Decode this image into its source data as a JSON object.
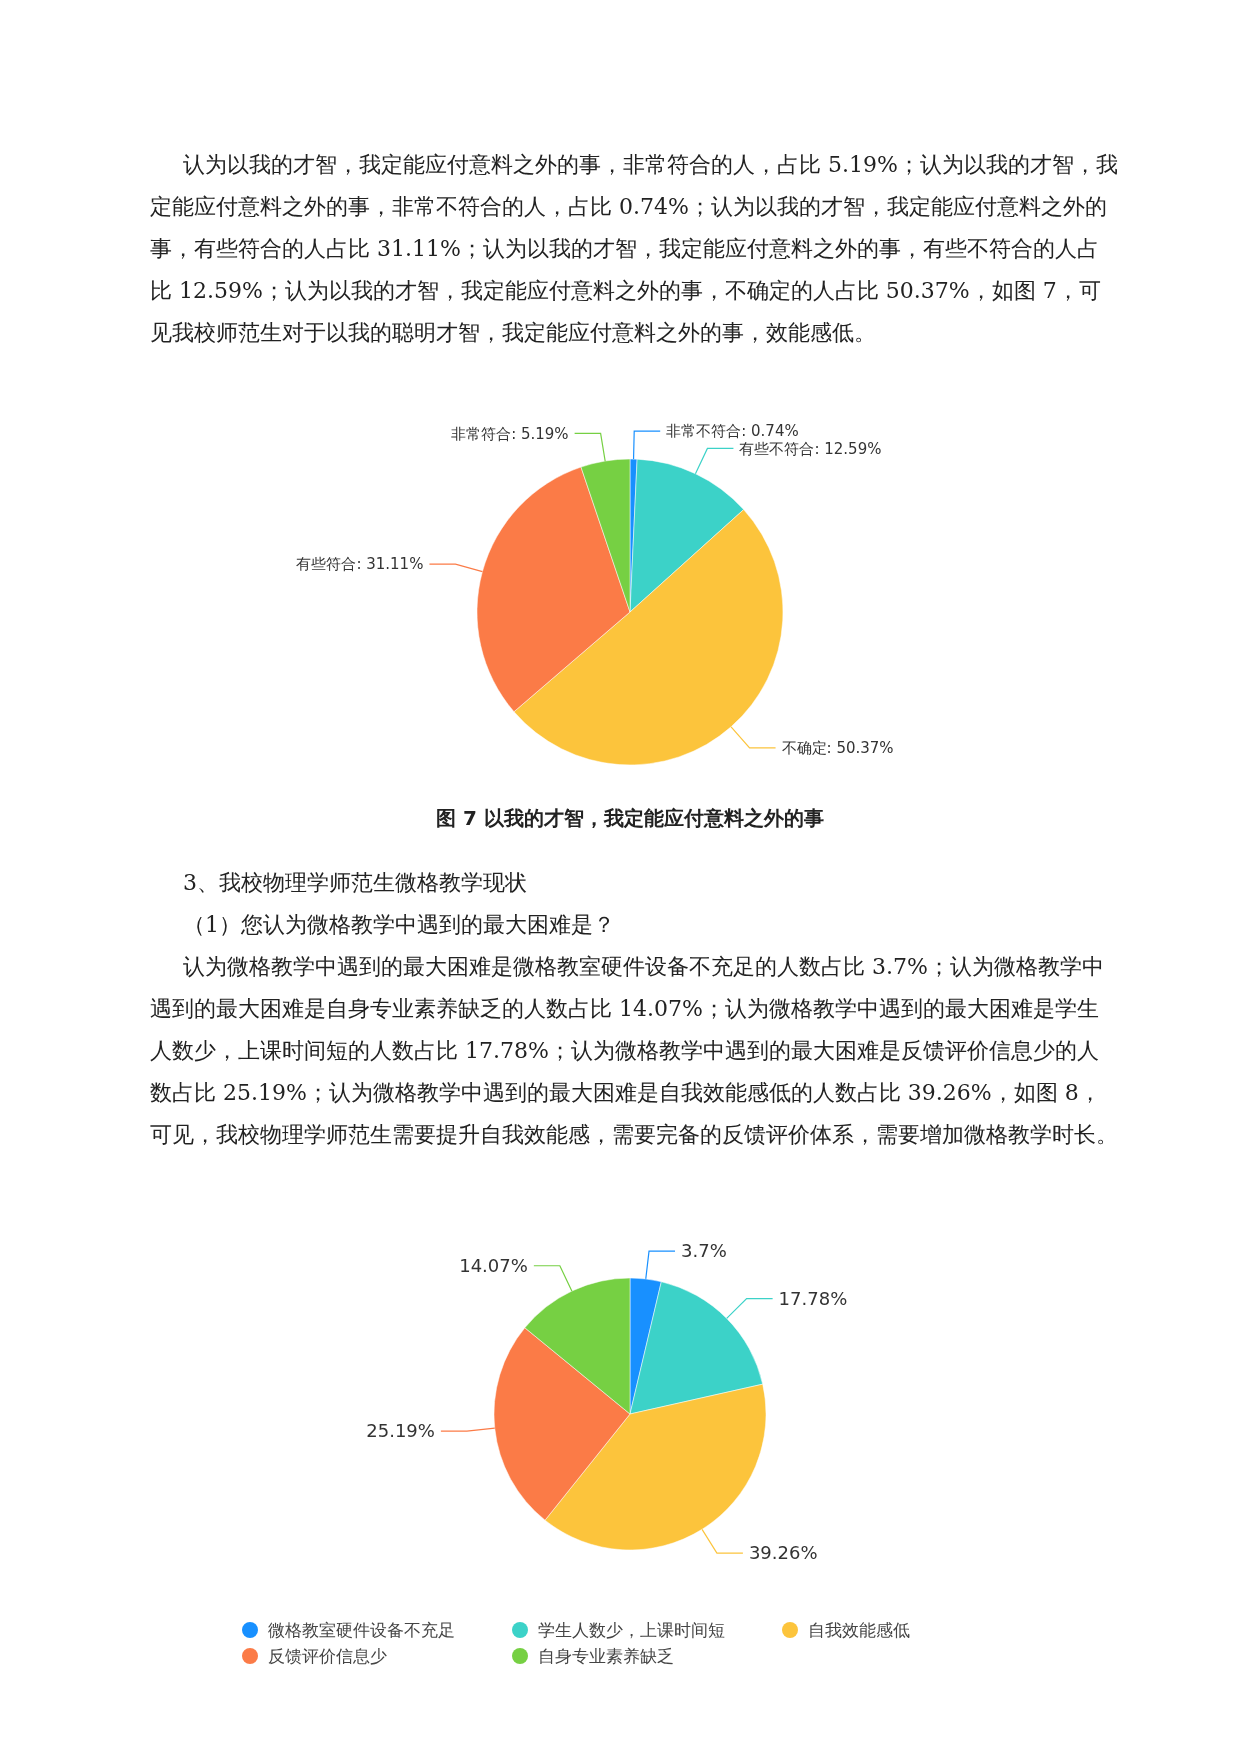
{
  "chart_data": [
    {
      "type": "pie",
      "title": "图 7 以我的才智，我定能应付意料之外的事",
      "annotations": [
        "认为以我的才智，我定能应付意料之外的事，非常符合的人，占比 5.19%；认为以我的才智，我定能应付意料之外的事，非常不符合的人，占比 0.74%；认为以我的才智，我定能应付意料之外的事，有些符合的人占比 31.11%；认为以我的才智，我定能应付意料之外的事，有些不符合的人占比 12.59%；认为以我的才智，我定能应付意料之外的事，不确定的人占比 50.37%，如图 7，可见我校师范生对于以我的聪明才智，我定能应付意料之外的事，效能感低。"
      ],
      "categories": [
        "非常不符合",
        "有些不符合",
        "不确定",
        "有些符合",
        "非常符合"
      ],
      "values": [
        0.74,
        12.59,
        50.37,
        31.11,
        5.19
      ],
      "colors": [
        "#1890ff",
        "#3cd2c8",
        "#fcc43c",
        "#fb7b47",
        "#76d043"
      ],
      "value_labels": [
        "0.74%",
        "12.59%",
        "50.37%",
        "31.11%",
        "5.19%"
      ],
      "legend": false
    },
    {
      "type": "pie",
      "annotations": [
        "3、我校物理学师范生微格教学现状",
        "（1）您认为微格教学中遇到的最大困难是？",
        "认为微格教学中遇到的最大困难是微格教室硬件设备不充足的人数占比 3.7%；认为微格教学中遇到的最大困难是自身专业素养缺乏的人数占比 14.07%；认为微格教学中遇到的最大困难是学生人数少，上课时间短的人数占比 17.78%；认为微格教学中遇到的最大困难是反馈评价信息少的人数占比 25.19%；认为微格教学中遇到的最大困难是自我效能感低的人数占比 39.26%，如图 8，可见，我校物理学师范生需要提升自我效能感，需要完备的反馈评价体系，需要增加微格教学时长。"
      ],
      "categories": [
        "微格教室硬件设备不充足",
        "学生人数少，上课时间短",
        "自我效能感低",
        "反馈评价信息少",
        "自身专业素养缺乏"
      ],
      "values": [
        3.7,
        17.78,
        39.26,
        25.19,
        14.07
      ],
      "colors": [
        "#1890ff",
        "#3cd2c8",
        "#fcc43c",
        "#fb7b47",
        "#76d043"
      ],
      "value_labels": [
        "3.7%",
        "17.78%",
        "39.26%",
        "25.19%",
        "14.07%"
      ],
      "legend": "bottom"
    }
  ]
}
